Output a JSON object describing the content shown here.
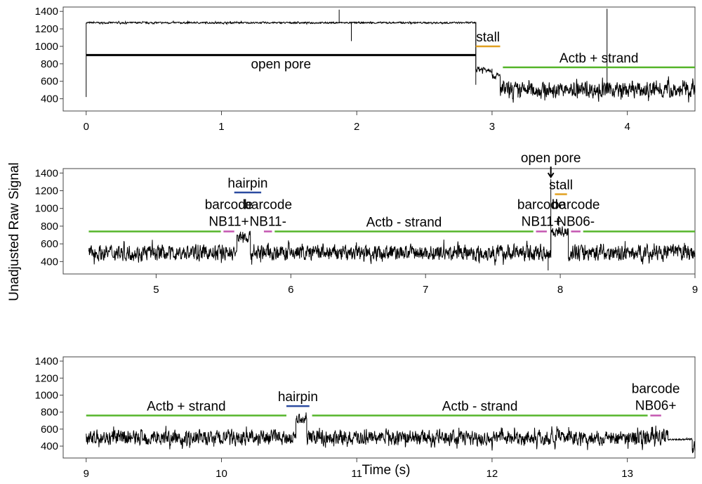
{
  "chart_data": {
    "type": "line",
    "ylabel": "Unadjusted Raw Signal",
    "xlabel": "Time (s)",
    "colors": {
      "signal": "#000000",
      "open_pore": "#000000",
      "stall": "#e0a020",
      "strand": "#55b52a",
      "hairpin": "#2b4ba0",
      "barcode": "#c456b0"
    },
    "panels": [
      {
        "xlim": [
          -0.17,
          4.5
        ],
        "ylim": [
          260,
          1450
        ],
        "xticks": [
          "0",
          "1",
          "2",
          "3",
          "4"
        ],
        "xtick_values": [
          0,
          1,
          2,
          3,
          4
        ],
        "yticks": [
          "400",
          "600",
          "800",
          "1000",
          "1200",
          "1400"
        ],
        "ytick_values": [
          400,
          600,
          800,
          1000,
          1200,
          1400
        ],
        "signal": [
          {
            "x0": 0,
            "x1": 2.88,
            "mean": 1270,
            "noise": 8
          },
          {
            "x0": 2.88,
            "x1": 3.0,
            "mean": 740,
            "noise": 30
          },
          {
            "x0": 3.0,
            "x1": 3.06,
            "mean": 660,
            "noise": 30
          },
          {
            "x0": 3.06,
            "x1": 4.5,
            "mean": 500,
            "noise": 75
          }
        ],
        "spikes": [
          {
            "x": 0,
            "y": 420
          },
          {
            "x": 1.87,
            "y": 1420
          },
          {
            "x": 1.96,
            "y": 1060
          },
          {
            "x": 2.88,
            "y": 560
          },
          {
            "x": 3.85,
            "y": 1430
          }
        ],
        "annotations": [
          {
            "kind": "open_pore",
            "x0": 0,
            "x1": 2.88,
            "y": 900,
            "label": "open pore",
            "label_pos": "below"
          },
          {
            "kind": "stall",
            "x0": 2.88,
            "x1": 3.06,
            "y": 1000,
            "label": "stall",
            "label_pos": "above"
          },
          {
            "kind": "strand",
            "x0": 3.08,
            "x1": 4.5,
            "y": 760,
            "label": "Actb + strand",
            "label_pos": "above"
          }
        ]
      },
      {
        "xlim": [
          4.31,
          9.0
        ],
        "ylim": [
          260,
          1450
        ],
        "xticks": [
          "5",
          "6",
          "7",
          "8",
          "9"
        ],
        "xtick_values": [
          5,
          6,
          7,
          8,
          9
        ],
        "yticks": [
          "400",
          "600",
          "800",
          "1000",
          "1200",
          "1400"
        ],
        "ytick_values": [
          400,
          600,
          800,
          1000,
          1200,
          1400
        ],
        "signal": [
          {
            "x0": 4.5,
            "x1": 5.6,
            "mean": 500,
            "noise": 75
          },
          {
            "x0": 5.6,
            "x1": 5.7,
            "mean": 680,
            "noise": 60
          },
          {
            "x0": 5.7,
            "x1": 7.93,
            "mean": 500,
            "noise": 75
          },
          {
            "x0": 7.93,
            "x1": 8.06,
            "mean": 740,
            "noise": 50
          },
          {
            "x0": 8.06,
            "x1": 9.0,
            "mean": 500,
            "noise": 75
          }
        ],
        "spikes": [
          {
            "x": 7.91,
            "y": 300
          },
          {
            "x": 7.93,
            "y": 1330
          }
        ],
        "annotations": [
          {
            "kind": "strand",
            "x0": 4.5,
            "x1": 5.48,
            "y": 740,
            "label": "",
            "label_pos": "above"
          },
          {
            "kind": "barcode",
            "x0": 5.5,
            "x1": 5.58,
            "y": 740,
            "label": "barcode NB11+",
            "label_pos": "above2"
          },
          {
            "kind": "hairpin",
            "x0": 5.58,
            "x1": 5.78,
            "y": 1180,
            "label": "hairpin",
            "label_pos": "above"
          },
          {
            "kind": "barcode",
            "x0": 5.8,
            "x1": 5.86,
            "y": 740,
            "label": "barcode NB11-",
            "label_pos": "above2"
          },
          {
            "kind": "strand",
            "x0": 5.88,
            "x1": 7.8,
            "y": 740,
            "label": "Actb - strand",
            "label_pos": "above"
          },
          {
            "kind": "barcode",
            "x0": 7.82,
            "x1": 7.9,
            "y": 740,
            "label": "barcode NB11+",
            "label_pos": "above2"
          },
          {
            "kind": "stall",
            "x0": 7.96,
            "x1": 8.05,
            "y": 1160,
            "label": "stall",
            "label_pos": "above"
          },
          {
            "kind": "barcode",
            "x0": 8.08,
            "x1": 8.15,
            "y": 740,
            "label": "barcode NB06-",
            "label_pos": "above2"
          },
          {
            "kind": "strand",
            "x0": 8.17,
            "x1": 9.0,
            "y": 740,
            "label": "",
            "label_pos": "above"
          },
          {
            "kind": "arrow",
            "x0": 7.93,
            "x1": 7.93,
            "y": 1330,
            "label": "open pore",
            "label_pos": "arrow"
          }
        ]
      },
      {
        "xlim": [
          8.83,
          13.5
        ],
        "ylim": [
          260,
          1450
        ],
        "xticks": [
          "9",
          "10",
          "11",
          "12",
          "13"
        ],
        "xtick_values": [
          9,
          10,
          11,
          12,
          13
        ],
        "yticks": [
          "400",
          "600",
          "800",
          "1000",
          "1200",
          "1400"
        ],
        "ytick_values": [
          400,
          600,
          800,
          1000,
          1200,
          1400
        ],
        "signal": [
          {
            "x0": 9.0,
            "x1": 10.55,
            "mean": 500,
            "noise": 75
          },
          {
            "x0": 10.55,
            "x1": 10.63,
            "mean": 720,
            "noise": 50
          },
          {
            "x0": 10.63,
            "x1": 13.3,
            "mean": 500,
            "noise": 75
          },
          {
            "x0": 13.3,
            "x1": 13.48,
            "mean": 480,
            "noise": 8
          },
          {
            "x0": 13.48,
            "x1": 13.5,
            "mean": 360,
            "noise": 60
          }
        ],
        "spikes": [],
        "annotations": [
          {
            "kind": "strand",
            "x0": 9.0,
            "x1": 10.48,
            "y": 760,
            "label": "Actb + strand",
            "label_pos": "above"
          },
          {
            "kind": "hairpin",
            "x0": 10.48,
            "x1": 10.65,
            "y": 870,
            "label": "hairpin",
            "label_pos": "above"
          },
          {
            "kind": "strand",
            "x0": 10.67,
            "x1": 13.15,
            "y": 760,
            "label": "Actb - strand",
            "label_pos": "above"
          },
          {
            "kind": "barcode",
            "x0": 13.17,
            "x1": 13.25,
            "y": 760,
            "label": "barcode NB06+",
            "label_pos": "above2"
          }
        ]
      }
    ]
  }
}
